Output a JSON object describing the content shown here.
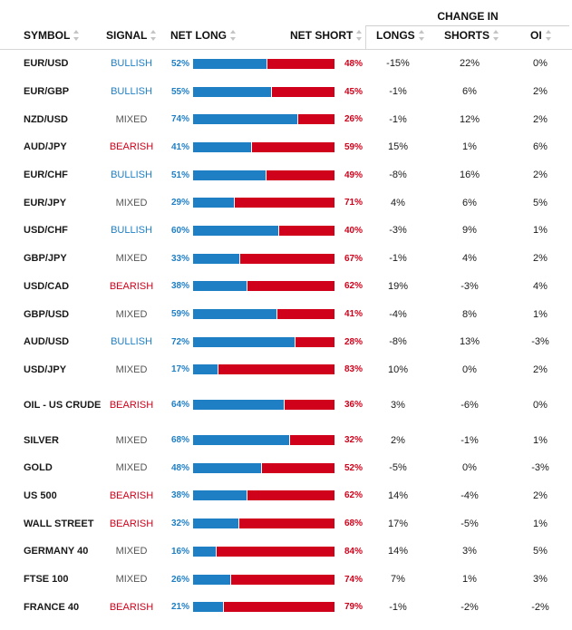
{
  "headers": {
    "change_in": "CHANGE IN",
    "symbol": "SYMBOL",
    "signal": "SIGNAL",
    "net_long": "NET LONG",
    "net_short": "NET SHORT",
    "longs": "LONGS",
    "shorts": "SHORTS",
    "oi": "OI"
  },
  "colors": {
    "long": "#1f7fc4",
    "short": "#d0021b",
    "mixed": "#555555"
  },
  "rows": [
    {
      "symbol": "EUR/USD",
      "signal": "BULLISH",
      "net_long": "52%",
      "net_short": "48%",
      "longs": "-15%",
      "shorts": "22%",
      "oi": "0%",
      "long_fraction": 0.52
    },
    {
      "symbol": "EUR/GBP",
      "signal": "BULLISH",
      "net_long": "55%",
      "net_short": "45%",
      "longs": "-1%",
      "shorts": "6%",
      "oi": "2%",
      "long_fraction": 0.55
    },
    {
      "symbol": "NZD/USD",
      "signal": "MIXED",
      "net_long": "74%",
      "net_short": "26%",
      "longs": "-1%",
      "shorts": "12%",
      "oi": "2%",
      "long_fraction": 0.74
    },
    {
      "symbol": "AUD/JPY",
      "signal": "BEARISH",
      "net_long": "41%",
      "net_short": "59%",
      "longs": "15%",
      "shorts": "1%",
      "oi": "6%",
      "long_fraction": 0.41
    },
    {
      "symbol": "EUR/CHF",
      "signal": "BULLISH",
      "net_long": "51%",
      "net_short": "49%",
      "longs": "-8%",
      "shorts": "16%",
      "oi": "2%",
      "long_fraction": 0.51
    },
    {
      "symbol": "EUR/JPY",
      "signal": "MIXED",
      "net_long": "29%",
      "net_short": "71%",
      "longs": "4%",
      "shorts": "6%",
      "oi": "5%",
      "long_fraction": 0.29
    },
    {
      "symbol": "USD/CHF",
      "signal": "BULLISH",
      "net_long": "60%",
      "net_short": "40%",
      "longs": "-3%",
      "shorts": "9%",
      "oi": "1%",
      "long_fraction": 0.6
    },
    {
      "symbol": "GBP/JPY",
      "signal": "MIXED",
      "net_long": "33%",
      "net_short": "67%",
      "longs": "-1%",
      "shorts": "4%",
      "oi": "2%",
      "long_fraction": 0.33
    },
    {
      "symbol": "USD/CAD",
      "signal": "BEARISH",
      "net_long": "38%",
      "net_short": "62%",
      "longs": "19%",
      "shorts": "-3%",
      "oi": "4%",
      "long_fraction": 0.38
    },
    {
      "symbol": "GBP/USD",
      "signal": "MIXED",
      "net_long": "59%",
      "net_short": "41%",
      "longs": "-4%",
      "shorts": "8%",
      "oi": "1%",
      "long_fraction": 0.59
    },
    {
      "symbol": "AUD/USD",
      "signal": "BULLISH",
      "net_long": "72%",
      "net_short": "28%",
      "longs": "-8%",
      "shorts": "13%",
      "oi": "-3%",
      "long_fraction": 0.72
    },
    {
      "symbol": "USD/JPY",
      "signal": "MIXED",
      "net_long": "17%",
      "net_short": "83%",
      "longs": "10%",
      "shorts": "0%",
      "oi": "2%",
      "long_fraction": 0.17
    },
    {
      "symbol": "OIL - US CRUDE",
      "signal": "BEARISH",
      "net_long": "64%",
      "net_short": "36%",
      "longs": "3%",
      "shorts": "-6%",
      "oi": "0%",
      "long_fraction": 0.64,
      "tall": true
    },
    {
      "symbol": "SILVER",
      "signal": "MIXED",
      "net_long": "68%",
      "net_short": "32%",
      "longs": "2%",
      "shorts": "-1%",
      "oi": "1%",
      "long_fraction": 0.68
    },
    {
      "symbol": "GOLD",
      "signal": "MIXED",
      "net_long": "48%",
      "net_short": "52%",
      "longs": "-5%",
      "shorts": "0%",
      "oi": "-3%",
      "long_fraction": 0.48
    },
    {
      "symbol": "US 500",
      "signal": "BEARISH",
      "net_long": "38%",
      "net_short": "62%",
      "longs": "14%",
      "shorts": "-4%",
      "oi": "2%",
      "long_fraction": 0.38
    },
    {
      "symbol": "WALL STREET",
      "signal": "BEARISH",
      "net_long": "32%",
      "net_short": "68%",
      "longs": "17%",
      "shorts": "-5%",
      "oi": "1%",
      "long_fraction": 0.32
    },
    {
      "symbol": "GERMANY 40",
      "signal": "MIXED",
      "net_long": "16%",
      "net_short": "84%",
      "longs": "14%",
      "shorts": "3%",
      "oi": "5%",
      "long_fraction": 0.16
    },
    {
      "symbol": "FTSE 100",
      "signal": "MIXED",
      "net_long": "26%",
      "net_short": "74%",
      "longs": "7%",
      "shorts": "1%",
      "oi": "3%",
      "long_fraction": 0.26
    },
    {
      "symbol": "FRANCE 40",
      "signal": "BEARISH",
      "net_long": "21%",
      "net_short": "79%",
      "longs": "-1%",
      "shorts": "-2%",
      "oi": "-2%",
      "long_fraction": 0.21
    }
  ]
}
